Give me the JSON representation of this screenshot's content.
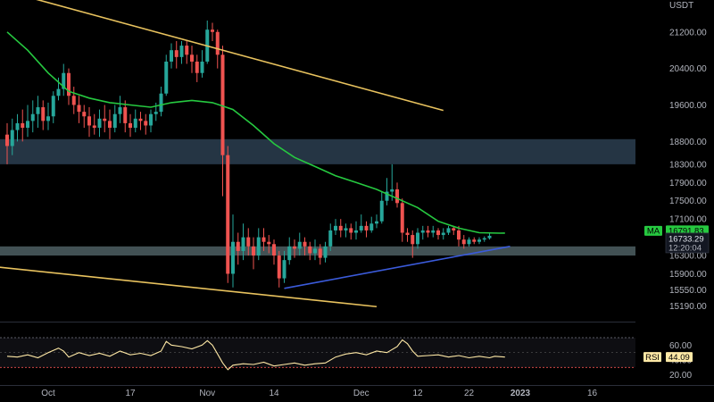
{
  "chart_data": {
    "type": "candlestick",
    "currency": "USDT",
    "price_scale": {
      "ylim": [
        14950,
        21900
      ],
      "ticks": [
        21200,
        20400,
        19600,
        18800,
        18300,
        17900,
        17500,
        17100,
        16300,
        15900,
        15550,
        15190
      ]
    },
    "x_ticks": [
      {
        "label": "Oct",
        "idx": 8
      },
      {
        "label": "17",
        "idx": 24
      },
      {
        "label": "Nov",
        "idx": 39
      },
      {
        "label": "14",
        "idx": 52
      },
      {
        "label": "Dec",
        "idx": 69
      },
      {
        "label": "12",
        "idx": 80
      },
      {
        "label": "22",
        "idx": 90
      },
      {
        "label": "2023",
        "idx": 100
      },
      {
        "label": "16",
        "idx": 114
      }
    ],
    "candles": [
      [
        18950,
        18700,
        19200,
        18300
      ],
      [
        18700,
        19050,
        19300,
        18500
      ],
      [
        19050,
        19200,
        19400,
        18800
      ],
      [
        19200,
        19100,
        19500,
        18800
      ],
      [
        19100,
        19250,
        19600,
        18900
      ],
      [
        19250,
        19400,
        19700,
        19000
      ],
      [
        19400,
        19550,
        19800,
        19100
      ],
      [
        19550,
        19250,
        19700,
        19050
      ],
      [
        19250,
        19350,
        19650,
        19050
      ],
      [
        19350,
        19800,
        19900,
        19200
      ],
      [
        19800,
        19950,
        20200,
        19700
      ],
      [
        19950,
        20300,
        20500,
        19800
      ],
      [
        20300,
        19800,
        20400,
        19600
      ],
      [
        19800,
        19600,
        20000,
        19400
      ],
      [
        19600,
        19450,
        19800,
        19200
      ],
      [
        19450,
        19350,
        19600,
        19100
      ],
      [
        19350,
        19150,
        19550,
        18900
      ],
      [
        19150,
        19100,
        19400,
        18950
      ],
      [
        19100,
        19300,
        19500,
        18900
      ],
      [
        19300,
        19250,
        19600,
        19000
      ],
      [
        19250,
        19100,
        19500,
        18850
      ],
      [
        19100,
        19400,
        19600,
        19000
      ],
      [
        19400,
        19550,
        19800,
        19200
      ],
      [
        19550,
        19200,
        19700,
        19000
      ],
      [
        19200,
        19100,
        19400,
        18900
      ],
      [
        19100,
        19300,
        19500,
        19000
      ],
      [
        19300,
        19250,
        19450,
        19050
      ],
      [
        19250,
        19150,
        19400,
        18950
      ],
      [
        19150,
        19400,
        19500,
        19000
      ],
      [
        19400,
        19450,
        19650,
        19250
      ],
      [
        19450,
        19850,
        20000,
        19350
      ],
      [
        19850,
        20550,
        20700,
        19800
      ],
      [
        20550,
        20800,
        20950,
        20400
      ],
      [
        20800,
        20650,
        21000,
        20400
      ],
      [
        20650,
        20900,
        21000,
        20500
      ],
      [
        20900,
        20700,
        21000,
        20500
      ],
      [
        20700,
        20550,
        20900,
        20300
      ],
      [
        20550,
        20300,
        20700,
        20100
      ],
      [
        20300,
        20550,
        20800,
        20200
      ],
      [
        20550,
        21250,
        21450,
        20500
      ],
      [
        21250,
        21200,
        21400,
        21000
      ],
      [
        21200,
        20700,
        21250,
        20400
      ],
      [
        20700,
        18500,
        20900,
        17600
      ],
      [
        18500,
        15900,
        18700,
        15700
      ],
      [
        15900,
        16600,
        17200,
        15600
      ],
      [
        16600,
        16400,
        16800,
        16100
      ],
      [
        16400,
        16700,
        17000,
        16200
      ],
      [
        16700,
        16500,
        16900,
        16300
      ],
      [
        16500,
        16300,
        16700,
        16000
      ],
      [
        16300,
        16700,
        16900,
        16200
      ],
      [
        16700,
        16600,
        16900,
        16400
      ],
      [
        16600,
        16550,
        16750,
        16350
      ],
      [
        16550,
        16300,
        16650,
        16100
      ],
      [
        16300,
        15800,
        16400,
        15600
      ],
      [
        15800,
        16200,
        16400,
        15700
      ],
      [
        16200,
        16500,
        16700,
        16100
      ],
      [
        16500,
        16450,
        16650,
        16250
      ],
      [
        16450,
        16600,
        16800,
        16300
      ],
      [
        16600,
        16500,
        16700,
        16300
      ],
      [
        16500,
        16350,
        16600,
        16200
      ],
      [
        16350,
        16450,
        16650,
        16200
      ],
      [
        16450,
        16250,
        16550,
        16100
      ],
      [
        16250,
        16500,
        16600,
        16150
      ],
      [
        16500,
        16850,
        17000,
        16400
      ],
      [
        16850,
        16950,
        17100,
        16750
      ],
      [
        16950,
        16850,
        17100,
        16700
      ],
      [
        16850,
        16900,
        17000,
        16700
      ],
      [
        16900,
        16800,
        17000,
        16650
      ],
      [
        16800,
        16850,
        17050,
        16650
      ],
      [
        16850,
        16950,
        17200,
        16800
      ],
      [
        16950,
        16850,
        17050,
        16700
      ],
      [
        16850,
        17000,
        17150,
        16800
      ],
      [
        17000,
        17050,
        17200,
        16900
      ],
      [
        17050,
        17500,
        17700,
        17000
      ],
      [
        17500,
        17700,
        18000,
        17400
      ],
      [
        17700,
        17750,
        18300,
        17500
      ],
      [
        17750,
        17450,
        17900,
        17350
      ],
      [
        17450,
        16800,
        17550,
        16600
      ],
      [
        16800,
        16750,
        16900,
        16600
      ],
      [
        16750,
        16550,
        16850,
        16250
      ],
      [
        16550,
        16800,
        16900,
        16450
      ],
      [
        16800,
        16850,
        16950,
        16650
      ],
      [
        16850,
        16800,
        16950,
        16700
      ],
      [
        16800,
        16850,
        16950,
        16700
      ],
      [
        16850,
        16750,
        16900,
        16650
      ],
      [
        16750,
        16800,
        16900,
        16650
      ],
      [
        16800,
        16900,
        16950,
        16750
      ],
      [
        16900,
        16850,
        16950,
        16750
      ],
      [
        16850,
        16650,
        16950,
        16500
      ],
      [
        16650,
        16550,
        16750,
        16450
      ],
      [
        16550,
        16650,
        16700,
        16500
      ],
      [
        16650,
        16600,
        16700,
        16550
      ],
      [
        16600,
        16650,
        16700,
        16550
      ],
      [
        16650,
        16680,
        16720,
        16600
      ],
      [
        16680,
        16733,
        16780,
        16650
      ]
    ],
    "ma": {
      "label": "MA",
      "value_label": "16791.83",
      "color": "#26c940",
      "points": [
        [
          0,
          21200
        ],
        [
          4,
          20800
        ],
        [
          8,
          20300
        ],
        [
          12,
          19900
        ],
        [
          16,
          19750
        ],
        [
          20,
          19650
        ],
        [
          24,
          19600
        ],
        [
          28,
          19550
        ],
        [
          32,
          19650
        ],
        [
          36,
          19700
        ],
        [
          40,
          19650
        ],
        [
          44,
          19500
        ],
        [
          48,
          19150
        ],
        [
          52,
          18750
        ],
        [
          56,
          18450
        ],
        [
          60,
          18250
        ],
        [
          64,
          18050
        ],
        [
          68,
          17900
        ],
        [
          72,
          17750
        ],
        [
          76,
          17550
        ],
        [
          80,
          17350
        ],
        [
          84,
          17050
        ],
        [
          88,
          16900
        ],
        [
          92,
          16800
        ],
        [
          96,
          16790
        ],
        [
          97,
          16792
        ]
      ]
    },
    "last_price": {
      "value": 16733.29,
      "label": "16733.29",
      "countdown": "12:20:04",
      "color": "#26a69a"
    },
    "zones": [
      {
        "from": 18300,
        "to": 18850,
        "color": "#2c3e50"
      },
      {
        "from": 16300,
        "to": 16500,
        "color": "#4d5f63"
      }
    ],
    "trendlines": [
      {
        "name": "upper-resistance",
        "color": "#e8c25e",
        "from": [
          -2,
          22150
        ],
        "to": [
          85,
          19480
        ]
      },
      {
        "name": "lower-support",
        "color": "#e8c25e",
        "from": [
          -2,
          16050
        ],
        "to": [
          72,
          15180
        ]
      },
      {
        "name": "ascending-support",
        "color": "#3b5bdb",
        "from": [
          54,
          15580
        ],
        "to": [
          98,
          16500
        ]
      }
    ],
    "rsi": {
      "label": "RSI",
      "value_label": "44.09",
      "ticks": [
        60.0,
        40.0,
        20.0
      ],
      "range": [
        10,
        82
      ],
      "upper": 70,
      "lower": 30,
      "color": "#ffe9a6",
      "points": [
        [
          0,
          45
        ],
        [
          2,
          44
        ],
        [
          4,
          47
        ],
        [
          6,
          43
        ],
        [
          8,
          50
        ],
        [
          10,
          56
        ],
        [
          11,
          52
        ],
        [
          12,
          44
        ],
        [
          14,
          50
        ],
        [
          16,
          46
        ],
        [
          18,
          49
        ],
        [
          20,
          45
        ],
        [
          22,
          52
        ],
        [
          24,
          47
        ],
        [
          26,
          49
        ],
        [
          28,
          46
        ],
        [
          30,
          52
        ],
        [
          31,
          65
        ],
        [
          32,
          60
        ],
        [
          34,
          58
        ],
        [
          36,
          55
        ],
        [
          38,
          60
        ],
        [
          39,
          66
        ],
        [
          40,
          60
        ],
        [
          41,
          48
        ],
        [
          42,
          36
        ],
        [
          43,
          27
        ],
        [
          44,
          33
        ],
        [
          46,
          35
        ],
        [
          48,
          34
        ],
        [
          50,
          37
        ],
        [
          52,
          32
        ],
        [
          54,
          34
        ],
        [
          56,
          36
        ],
        [
          58,
          33
        ],
        [
          60,
          35
        ],
        [
          62,
          36
        ],
        [
          64,
          44
        ],
        [
          66,
          48
        ],
        [
          68,
          50
        ],
        [
          70,
          47
        ],
        [
          72,
          52
        ],
        [
          74,
          50
        ],
        [
          76,
          58
        ],
        [
          77,
          67
        ],
        [
          78,
          62
        ],
        [
          79,
          52
        ],
        [
          80,
          45
        ],
        [
          82,
          46
        ],
        [
          84,
          47
        ],
        [
          86,
          44
        ],
        [
          88,
          46
        ],
        [
          90,
          43
        ],
        [
          92,
          45
        ],
        [
          94,
          43
        ],
        [
          95,
          45
        ],
        [
          97,
          44
        ]
      ]
    }
  }
}
